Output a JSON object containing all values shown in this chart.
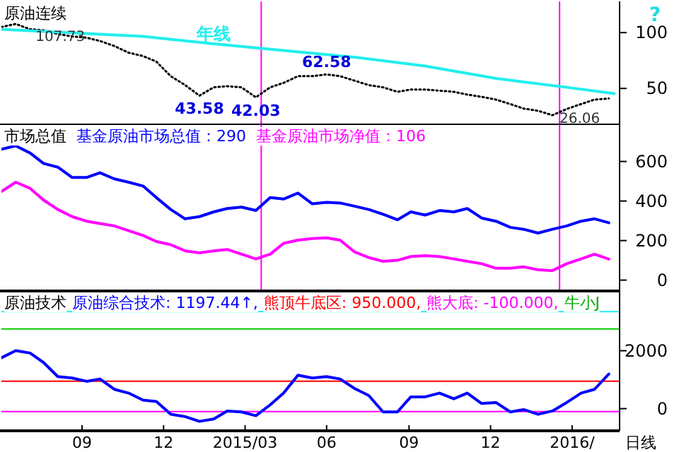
{
  "chart_data": [
    {
      "type": "line",
      "title": "原油连续",
      "ylabel": "?",
      "xlim": [
        "2014-06-03",
        "2016-04-23"
      ],
      "ylim": [
        17.9,
        127.9
      ],
      "yticks": [
        50,
        100
      ],
      "tick_labels": "y",
      "legend": false,
      "grid": false,
      "x": [
        "2014-06-03",
        "2014-06-19",
        "2014-07-05",
        "2014-07-20",
        "2014-08-05",
        "2014-08-21",
        "2014-09-06",
        "2014-09-21",
        "2014-10-07",
        "2014-10-23",
        "2014-11-08",
        "2014-11-23",
        "2014-12-09",
        "2014-12-25",
        "2015-01-10",
        "2015-01-26",
        "2015-02-10",
        "2015-02-26",
        "2015-03-14",
        "2015-03-30",
        "2015-04-14",
        "2015-04-30",
        "2015-05-16",
        "2015-06-01",
        "2015-06-16",
        "2015-07-02",
        "2015-07-18",
        "2015-08-03",
        "2015-08-19",
        "2015-09-03",
        "2015-09-19",
        "2015-10-05",
        "2015-10-21",
        "2015-11-05",
        "2015-11-21",
        "2015-12-07",
        "2015-12-23",
        "2016-01-07",
        "2016-01-23",
        "2016-02-08",
        "2016-02-24",
        "2016-03-11",
        "2016-03-26",
        "2016-04-11"
      ],
      "series": [
        {
          "color": "#000000",
          "line_style": "dotted",
          "values": [
            105,
            107.73,
            103,
            102,
            98.7,
            96.6,
            95.4,
            92.5,
            88,
            82,
            79,
            74,
            61,
            53,
            43.58,
            51,
            52,
            51,
            42.03,
            51,
            55,
            61,
            61,
            62.58,
            61,
            57,
            53,
            51,
            47,
            49,
            49,
            48,
            47,
            44.5,
            42.5,
            40,
            36,
            32,
            30,
            26.06,
            31.6,
            36,
            40,
            41
          ]
        },
        {
          "name": "年线",
          "color": "#22eeee",
          "x": [
            "2014-06-03",
            "2014-11-08",
            "2015-01-26",
            "2015-04-14",
            "2015-07-02",
            "2015-09-19",
            "2015-12-07",
            "2016-02-24",
            "2016-04-17"
          ],
          "values": [
            103,
            96.6,
            90,
            84,
            78,
            70,
            59,
            51,
            45.4
          ]
        }
      ],
      "annotations": [
        {
          "text": "107.73",
          "x": "2014-06-19",
          "y": 107.73
        },
        {
          "text": "43.58",
          "x": "2015-01-10",
          "y": 43.58
        },
        {
          "text": "42.03",
          "x": "2015-03-14",
          "y": 42.03
        },
        {
          "text": "62.58",
          "x": "2015-06-01",
          "y": 62.58
        },
        {
          "text": "26.06",
          "x": "2016-02-08",
          "y": 26.06
        }
      ],
      "ref_lines": [
        {
          "axis": "x",
          "value": "2015-03-20",
          "color": "#ff00ff"
        },
        {
          "axis": "x",
          "value": "2016-02-16",
          "color": "#ff00ff"
        }
      ]
    },
    {
      "type": "line",
      "title": "市场总值",
      "xlim": [
        "2014-06-03",
        "2016-04-23"
      ],
      "ylim": [
        -55,
        788
      ],
      "yticks": [
        0,
        200,
        400,
        600
      ],
      "tick_labels": "y",
      "legend": false,
      "grid": false,
      "x": [
        "2014-06-03",
        "2014-06-19",
        "2014-07-05",
        "2014-07-20",
        "2014-08-05",
        "2014-08-21",
        "2014-09-06",
        "2014-09-21",
        "2014-10-07",
        "2014-10-23",
        "2014-11-08",
        "2014-11-23",
        "2014-12-09",
        "2014-12-25",
        "2015-01-10",
        "2015-01-26",
        "2015-02-10",
        "2015-02-26",
        "2015-03-14",
        "2015-03-30",
        "2015-04-14",
        "2015-04-30",
        "2015-05-16",
        "2015-06-01",
        "2015-06-16",
        "2015-07-02",
        "2015-07-18",
        "2015-08-03",
        "2015-08-19",
        "2015-09-03",
        "2015-09-19",
        "2015-10-05",
        "2015-10-21",
        "2015-11-05",
        "2015-11-21",
        "2015-12-07",
        "2015-12-23",
        "2016-01-07",
        "2016-01-23",
        "2016-02-08",
        "2016-02-24",
        "2016-03-11",
        "2016-03-26",
        "2016-04-11"
      ],
      "series": [
        {
          "name": "基金原油市场总值",
          "color": "#0000ff",
          "values": [
            662,
            679,
            643,
            590,
            571,
            519,
            519,
            543,
            512,
            495,
            476,
            417,
            357,
            310,
            321,
            345,
            362,
            369,
            352,
            417,
            410,
            440,
            386,
            393,
            390,
            374,
            357,
            333,
            305,
            345,
            329,
            352,
            345,
            362,
            314,
            298,
            267,
            257,
            238,
            257,
            274,
            298,
            310,
            290
          ],
          "value_labels": [
            null,
            null,
            null,
            null,
            null,
            null,
            null,
            null,
            null,
            null,
            null,
            null,
            null,
            null,
            null,
            null,
            null,
            null,
            null,
            null,
            null,
            null,
            null,
            null,
            null,
            null,
            null,
            null,
            null,
            null,
            null,
            null,
            null,
            null,
            null,
            null,
            null,
            null,
            null,
            null,
            null,
            null,
            null,
            "：290"
          ]
        },
        {
          "name": "基金原油市场净值",
          "color": "#ff00ff",
          "values": [
            448,
            495,
            464,
            405,
            357,
            321,
            298,
            286,
            274,
            250,
            226,
            195,
            179,
            148,
            138,
            148,
            155,
            131,
            107,
            131,
            186,
            202,
            210,
            214,
            202,
            143,
            114,
            95,
            100,
            119,
            124,
            119,
            107,
            95,
            83,
            60,
            60,
            67,
            52,
            48,
            83,
            107,
            131,
            106
          ],
          "value_labels": [
            null,
            null,
            null,
            null,
            null,
            null,
            null,
            null,
            null,
            null,
            null,
            null,
            null,
            null,
            null,
            null,
            null,
            null,
            null,
            null,
            null,
            null,
            null,
            null,
            null,
            null,
            null,
            null,
            null,
            null,
            null,
            null,
            null,
            null,
            null,
            null,
            null,
            null,
            null,
            null,
            null,
            null,
            null,
            "：106"
          ]
        }
      ],
      "ref_lines": [
        {
          "axis": "x",
          "value": "2015-03-20",
          "color": "#ff00ff"
        },
        {
          "axis": "x",
          "value": "2016-02-16",
          "color": "#ff00ff"
        }
      ]
    },
    {
      "type": "line",
      "title": "原油技术",
      "xlabel": "日线",
      "xlim": [
        "2014-06-03",
        "2016-04-23"
      ],
      "ylim": [
        -766,
        4063
      ],
      "yticks": [
        0,
        2000
      ],
      "legend": false,
      "grid": false,
      "xticks": [
        {
          "value": "2014-09-01",
          "label": "09"
        },
        {
          "value": "2014-12-01",
          "label": "12"
        },
        {
          "value": "2015-03-02",
          "label": "2015/03"
        },
        {
          "value": "2015-06-01",
          "label": "06"
        },
        {
          "value": "2015-09-01",
          "label": "09"
        },
        {
          "value": "2015-12-01",
          "label": "12"
        },
        {
          "value": "2016-03-01",
          "label": "2016/"
        }
      ],
      "x": [
        "2014-06-03",
        "2014-06-19",
        "2014-07-05",
        "2014-07-20",
        "2014-08-05",
        "2014-08-21",
        "2014-09-06",
        "2014-09-21",
        "2014-10-07",
        "2014-10-23",
        "2014-11-08",
        "2014-11-23",
        "2014-12-09",
        "2014-12-25",
        "2015-01-10",
        "2015-01-26",
        "2015-02-10",
        "2015-02-26",
        "2015-03-14",
        "2015-03-30",
        "2015-04-14",
        "2015-04-30",
        "2015-05-16",
        "2015-06-01",
        "2015-06-16",
        "2015-07-02",
        "2015-07-18",
        "2015-08-03",
        "2015-08-19",
        "2015-09-03",
        "2015-09-19",
        "2015-10-05",
        "2015-10-21",
        "2015-11-05",
        "2015-11-21",
        "2015-12-07",
        "2015-12-23",
        "2016-01-07",
        "2016-01-23",
        "2016-02-08",
        "2016-02-24",
        "2016-03-11",
        "2016-03-26",
        "2016-04-11"
      ],
      "series": [
        {
          "name": "原油综合技术",
          "color": "#0000ff",
          "values": [
            1756,
            2000,
            1919,
            1594,
            1106,
            1057,
            943,
            1024,
            667,
            537,
            293,
            244,
            -195,
            -276,
            -439,
            -358,
            -81,
            -114,
            -244,
            130,
            537,
            1154,
            1057,
            1106,
            1024,
            699,
            455,
            -114,
            -114,
            407,
            407,
            537,
            341,
            537,
            179,
            211,
            -114,
            -33,
            -195,
            -81,
            211,
            537,
            667,
            1197.44
          ],
          "value_labels": [
            null,
            null,
            null,
            null,
            null,
            null,
            null,
            null,
            null,
            null,
            null,
            null,
            null,
            null,
            null,
            null,
            null,
            null,
            null,
            null,
            null,
            null,
            null,
            null,
            null,
            null,
            null,
            null,
            null,
            null,
            null,
            null,
            null,
            null,
            null,
            null,
            null,
            null,
            null,
            null,
            null,
            null,
            null,
            ": 1197.44↑,"
          ]
        }
      ],
      "ref_lines": [
        {
          "axis": "y",
          "value": 950,
          "label": "熊顶牛底区: 950.000,",
          "color": "#ff0000"
        },
        {
          "axis": "y",
          "value": -100,
          "label": "熊大底: -100.000,",
          "color": "#ff00ff"
        },
        {
          "axis": "y",
          "value": 2750,
          "color": "#00cc00"
        },
        {
          "axis": "y",
          "value": 3350,
          "color": "#22eeee"
        }
      ],
      "annotations": [
        "牛小J"
      ]
    }
  ]
}
